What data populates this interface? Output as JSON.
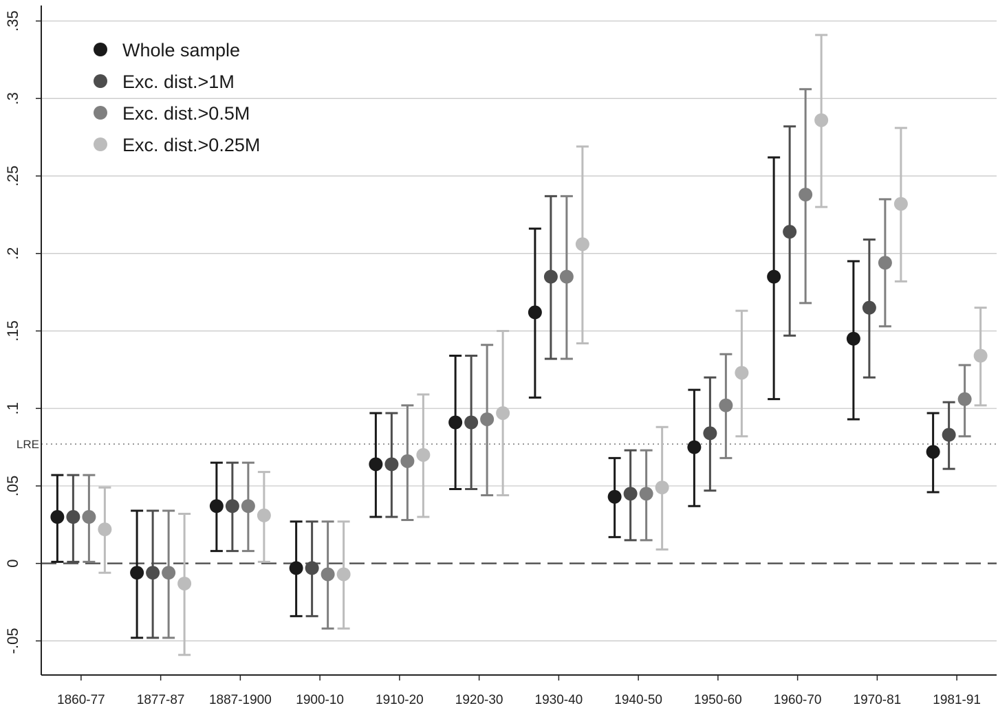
{
  "chart_data": {
    "type": "scatter",
    "subtype": "point-with-error-bars",
    "categories": [
      "1860-77",
      "1877-87",
      "1887-1900",
      "1900-10",
      "1910-20",
      "1920-30",
      "1930-40",
      "1940-50",
      "1950-60",
      "1960-70",
      "1970-81",
      "1981-91"
    ],
    "ylim": [
      -0.072,
      0.36
    ],
    "yticks": [
      -0.05,
      0,
      0.05,
      0.1,
      0.15,
      0.2,
      0.25,
      0.3,
      0.35
    ],
    "ytick_labels": [
      "-.05",
      "0",
      ".05",
      ".1",
      ".15",
      ".2",
      ".25",
      ".3",
      ".35"
    ],
    "grid": true,
    "legend_position": "top-left",
    "reference_lines": [
      {
        "label": "",
        "value": 0,
        "style": "dashed"
      },
      {
        "label": "LRE",
        "value": 0.077,
        "style": "dotted"
      }
    ],
    "series": [
      {
        "name": "Whole sample",
        "color": "#1a1a1a",
        "values": [
          0.03,
          -0.006,
          0.037,
          -0.003,
          0.064,
          0.091,
          0.162,
          0.043,
          0.075,
          0.185,
          0.145,
          0.072
        ],
        "lower": [
          0.001,
          -0.048,
          0.008,
          -0.034,
          0.03,
          0.048,
          0.107,
          0.017,
          0.037,
          0.106,
          0.093,
          0.046
        ],
        "upper": [
          0.057,
          0.034,
          0.065,
          0.027,
          0.097,
          0.134,
          0.216,
          0.068,
          0.112,
          0.262,
          0.195,
          0.097
        ]
      },
      {
        "name": "Exc. dist.>1M",
        "color": "#4d4d4d",
        "values": [
          0.03,
          -0.006,
          0.037,
          -0.003,
          0.064,
          0.091,
          0.185,
          0.045,
          0.084,
          0.214,
          0.165,
          0.083
        ],
        "lower": [
          0.001,
          -0.048,
          0.008,
          -0.034,
          0.03,
          0.048,
          0.132,
          0.015,
          0.047,
          0.147,
          0.12,
          0.061
        ],
        "upper": [
          0.057,
          0.034,
          0.065,
          0.027,
          0.097,
          0.134,
          0.237,
          0.073,
          0.12,
          0.282,
          0.209,
          0.104
        ]
      },
      {
        "name": "Exc. dist.>0.5M",
        "color": "#7f7f7f",
        "values": [
          0.03,
          -0.006,
          0.037,
          -0.007,
          0.066,
          0.093,
          0.185,
          0.045,
          0.102,
          0.238,
          0.194,
          0.106
        ],
        "lower": [
          0.001,
          -0.048,
          0.008,
          -0.042,
          0.028,
          0.044,
          0.132,
          0.015,
          0.068,
          0.168,
          0.153,
          0.082
        ],
        "upper": [
          0.057,
          0.034,
          0.065,
          0.027,
          0.102,
          0.141,
          0.237,
          0.073,
          0.135,
          0.306,
          0.235,
          0.128
        ]
      },
      {
        "name": "Exc. dist.>0.25M",
        "color": "#bcbcbc",
        "values": [
          0.022,
          -0.013,
          0.031,
          -0.007,
          0.07,
          0.097,
          0.206,
          0.049,
          0.123,
          0.286,
          0.232,
          0.134
        ],
        "lower": [
          -0.006,
          -0.059,
          0.001,
          -0.042,
          0.03,
          0.044,
          0.142,
          0.009,
          0.082,
          0.23,
          0.182,
          0.102
        ],
        "upper": [
          0.049,
          0.032,
          0.059,
          0.027,
          0.109,
          0.15,
          0.269,
          0.088,
          0.163,
          0.341,
          0.281,
          0.165
        ]
      }
    ]
  }
}
